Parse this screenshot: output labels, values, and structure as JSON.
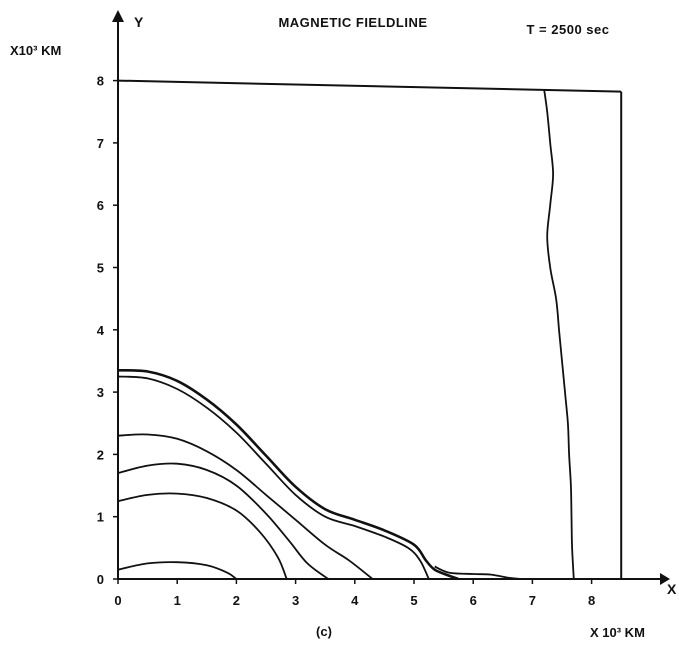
{
  "chart_data": {
    "type": "line",
    "title": "MAGNETIC FIELDLINE",
    "time_label": "T = 2500 sec",
    "x_axis_name": "X",
    "y_axis_name": "Y",
    "x_unit_label": "X 10³ KM",
    "y_unit_label": "X10³ KM",
    "caption": "(c)",
    "xlim": [
      0,
      8.5
    ],
    "ylim": [
      0,
      8
    ],
    "x_ticks": [
      "0",
      "1",
      "2",
      "3",
      "4",
      "5",
      "6",
      "7",
      "8"
    ],
    "y_ticks": [
      "0",
      "1",
      "2",
      "3",
      "4",
      "5",
      "6",
      "7",
      "8"
    ],
    "grid": false,
    "boundary_box": {
      "x_max": 8.5,
      "y_max": 8
    },
    "series": [
      {
        "values": [
          [
            0,
            0.15
          ],
          [
            0.5,
            0.25
          ],
          [
            1,
            0.27
          ],
          [
            1.5,
            0.22
          ],
          [
            1.85,
            0.1
          ],
          [
            2.0,
            0.0
          ]
        ]
      },
      {
        "values": [
          [
            0,
            1.25
          ],
          [
            0.5,
            1.35
          ],
          [
            1,
            1.37
          ],
          [
            1.5,
            1.3
          ],
          [
            2,
            1.1
          ],
          [
            2.4,
            0.75
          ],
          [
            2.7,
            0.35
          ],
          [
            2.85,
            0.0
          ]
        ]
      },
      {
        "values": [
          [
            0,
            1.7
          ],
          [
            0.5,
            1.82
          ],
          [
            1,
            1.85
          ],
          [
            1.5,
            1.75
          ],
          [
            2,
            1.5
          ],
          [
            2.5,
            1.05
          ],
          [
            2.9,
            0.6
          ],
          [
            3.2,
            0.25
          ],
          [
            3.55,
            0.0
          ]
        ]
      },
      {
        "values": [
          [
            0,
            2.3
          ],
          [
            0.5,
            2.32
          ],
          [
            1,
            2.25
          ],
          [
            1.5,
            2.05
          ],
          [
            2,
            1.75
          ],
          [
            2.5,
            1.35
          ],
          [
            3,
            0.95
          ],
          [
            3.5,
            0.55
          ],
          [
            3.9,
            0.3
          ],
          [
            4.3,
            0.0
          ]
        ]
      },
      {
        "values": [
          [
            0,
            3.25
          ],
          [
            0.5,
            3.22
          ],
          [
            1,
            3.05
          ],
          [
            1.5,
            2.75
          ],
          [
            2,
            2.35
          ],
          [
            2.5,
            1.85
          ],
          [
            3,
            1.35
          ],
          [
            3.5,
            1.0
          ],
          [
            4,
            0.85
          ],
          [
            4.5,
            0.68
          ],
          [
            4.9,
            0.5
          ],
          [
            5.1,
            0.3
          ],
          [
            5.25,
            0.0
          ]
        ]
      },
      {
        "values": [
          [
            0,
            3.35
          ],
          [
            0.5,
            3.33
          ],
          [
            1,
            3.18
          ],
          [
            1.5,
            2.88
          ],
          [
            2,
            2.48
          ],
          [
            2.5,
            1.98
          ],
          [
            3,
            1.48
          ],
          [
            3.5,
            1.12
          ],
          [
            4,
            0.95
          ],
          [
            4.5,
            0.78
          ],
          [
            5,
            0.55
          ],
          [
            5.2,
            0.3
          ],
          [
            5.35,
            0.15
          ],
          [
            5.6,
            0.05
          ],
          [
            5.75,
            0.0
          ]
        ]
      },
      {
        "values": [
          [
            5.35,
            0.2
          ],
          [
            5.6,
            0.1
          ],
          [
            6,
            0.08
          ],
          [
            6.3,
            0.07
          ],
          [
            6.6,
            0.02
          ],
          [
            6.8,
            0.0
          ]
        ]
      },
      {
        "values": [
          [
            7.2,
            7.85
          ],
          [
            7.25,
            7.5
          ],
          [
            7.3,
            7.0
          ],
          [
            7.35,
            6.5
          ],
          [
            7.3,
            6.0
          ],
          [
            7.25,
            5.5
          ],
          [
            7.3,
            5.0
          ],
          [
            7.4,
            4.5
          ],
          [
            7.45,
            4.0
          ],
          [
            7.5,
            3.5
          ],
          [
            7.55,
            3.0
          ],
          [
            7.6,
            2.5
          ],
          [
            7.62,
            2.0
          ],
          [
            7.65,
            1.5
          ],
          [
            7.66,
            1.0
          ],
          [
            7.67,
            0.5
          ],
          [
            7.7,
            0.0
          ]
        ]
      }
    ]
  }
}
